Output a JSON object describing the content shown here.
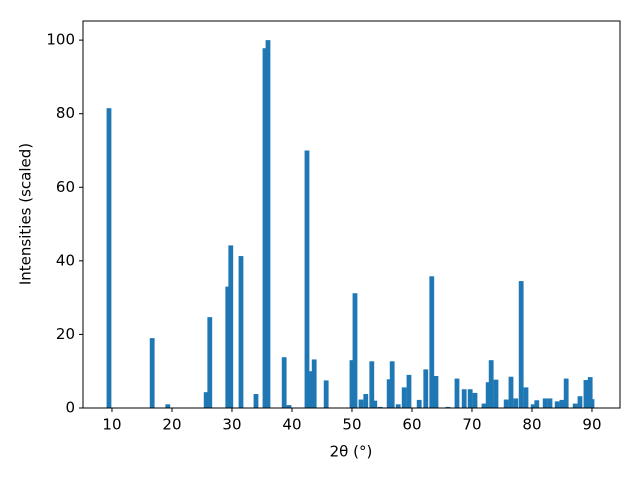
{
  "chart_data": {
    "type": "bar",
    "xlabel": "2θ (°)",
    "ylabel": "Intensities (scaled)",
    "color": "#1f77b4",
    "x": [
      9.5,
      16.7,
      19.3,
      25.7,
      26.3,
      29.3,
      29.8,
      31.5,
      34,
      35.5,
      36,
      38.7,
      39.5,
      42.5,
      43.2,
      43.7,
      45.7,
      50,
      50.5,
      51.5,
      52.3,
      53.3,
      53.8,
      54.7,
      56.2,
      56.7,
      57.7,
      58.7,
      59.5,
      61.2,
      62.3,
      63.3,
      64,
      66,
      67.5,
      68.7,
      69.7,
      70.5,
      72,
      72.7,
      73.2,
      74,
      75.7,
      76.5,
      77.3,
      78.2,
      79,
      80.2,
      80.8,
      82.2,
      83,
      84.2,
      85,
      85.7,
      87.2,
      88,
      89,
      89.7,
      90
    ],
    "values": [
      81.5,
      19,
      1,
      4.3,
      24.7,
      33,
      44.2,
      41.3,
      3.8,
      97.8,
      100,
      13.8,
      0.8,
      70,
      10,
      13.2,
      7.5,
      13,
      31.2,
      2.3,
      3.8,
      12.7,
      2,
      0.3,
      7.8,
      12.7,
      1,
      5.6,
      9,
      2.2,
      10.5,
      35.8,
      8.7,
      0.3,
      8,
      5.1,
      5.1,
      4.1,
      1.2,
      7,
      13,
      7.7,
      2.3,
      8.5,
      2.6,
      34.5,
      5.6,
      1,
      2.1,
      2.6,
      2.6,
      1.8,
      2.2,
      8,
      1.2,
      3.2,
      7.6,
      8.4,
      2.4
    ],
    "xlim": [
      5.17,
      94.67
    ],
    "ylim": [
      0,
      105.2
    ],
    "xticks": [
      10,
      20,
      30,
      40,
      50,
      60,
      70,
      80,
      90
    ],
    "yticks": [
      0,
      20,
      40,
      60,
      80,
      100
    ]
  }
}
